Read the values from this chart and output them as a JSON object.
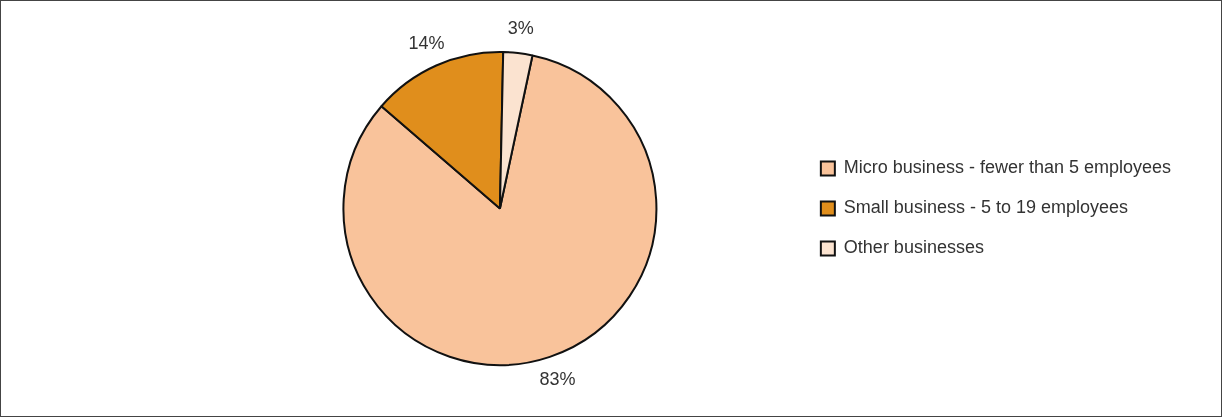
{
  "chart_data": {
    "type": "pie",
    "categories": [
      "Micro business - fewer than 5 employees",
      "Small business - 5 to 19 employees",
      "Other businesses"
    ],
    "values": [
      83,
      14,
      3
    ],
    "colors": [
      "#f9c39b",
      "#e08e1c",
      "#fbe3d0"
    ],
    "value_labels": [
      "83%",
      "14%",
      "3%"
    ],
    "legend": "right"
  }
}
